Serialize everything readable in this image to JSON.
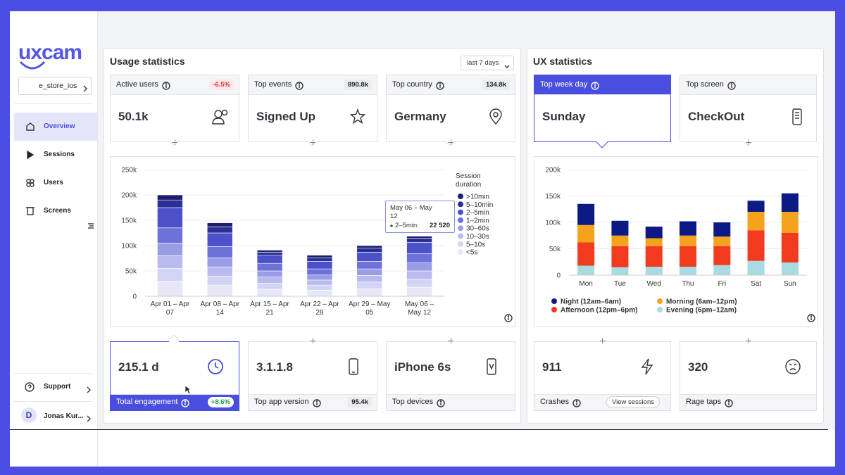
{
  "sidebar": {
    "logo": "uxcam",
    "app": "e_store_ios",
    "nav": [
      "Overview",
      "Sessions",
      "Users",
      "Screens"
    ],
    "support": "Support",
    "user": {
      "initial": "D",
      "name": "Jonas Kur..."
    }
  },
  "usage": {
    "title": "Usage statistics",
    "period": "last 7 days",
    "top_cards": [
      {
        "label": "Active users",
        "badge": "-6.5%",
        "value": "50.1k"
      },
      {
        "label": "Top events",
        "badge": "890.8k",
        "value": "Signed Up"
      },
      {
        "label": "Top country",
        "badge": "134.8k",
        "value": "Germany"
      }
    ],
    "bottom_cards": [
      {
        "label": "Total engagement",
        "badge": "+8.6%",
        "value": "215.1 d"
      },
      {
        "label": "Top app version",
        "badge": "95.4k",
        "value": "3.1.1.8"
      },
      {
        "label": "Top devices",
        "value": "iPhone 6s"
      }
    ]
  },
  "ux": {
    "title": "UX statistics",
    "top_cards": [
      {
        "label": "Top week day",
        "value": "Sunday"
      },
      {
        "label": "Top screen",
        "value": "CheckOut"
      }
    ],
    "bottom_cards": [
      {
        "label": "Crashes",
        "value": "911",
        "button": "View sessions"
      },
      {
        "label": "Rage taps",
        "value": "320"
      }
    ]
  },
  "chart_data": [
    {
      "type": "bar",
      "stacked": true,
      "legend_title": "Session duration",
      "grid": true,
      "categories": [
        "Apr 01 – Apr 07",
        "Apr 08 – Apr 14",
        "Apr 15 – Apr 21",
        "Apr 22 – Apr 28",
        "Apr 29 – May 05",
        "May 06 – May 12"
      ],
      "series": [
        {
          "name": ">10min",
          "color": "#1b1f6e",
          "values": [
            10000,
            8000,
            4000,
            5000,
            5000,
            4000
          ]
        },
        {
          "name": "5–10min",
          "color": "#2a2f95",
          "values": [
            15000,
            12000,
            6000,
            7000,
            8000,
            8000
          ]
        },
        {
          "name": "2–5min",
          "color": "#4c51c9",
          "values": [
            40000,
            27000,
            16000,
            15000,
            18000,
            22520
          ]
        },
        {
          "name": "1–2min",
          "color": "#6d72d9",
          "values": [
            30000,
            22000,
            15000,
            12000,
            15000,
            18000
          ]
        },
        {
          "name": "30–60s",
          "color": "#9a9de6",
          "values": [
            25000,
            18000,
            12000,
            10000,
            13000,
            16000
          ]
        },
        {
          "name": "10–30s",
          "color": "#b9bbee",
          "values": [
            25000,
            18000,
            12000,
            10000,
            13000,
            16000
          ]
        },
        {
          "name": "5–10s",
          "color": "#d3d4f5",
          "values": [
            25000,
            18000,
            12000,
            10000,
            13000,
            16000
          ]
        },
        {
          "name": "<5s",
          "color": "#e6e7f9",
          "values": [
            30000,
            22000,
            14000,
            12000,
            15000,
            18000
          ]
        }
      ],
      "ylim": [
        0,
        250000
      ],
      "yticks": [
        0,
        {
          "value": 50000,
          "label": "50k"
        },
        {
          "value": 100000,
          "label": "100k"
        },
        {
          "value": 150000,
          "label": "150k"
        },
        {
          "value": 200000,
          "label": "200k"
        },
        {
          "value": 250000,
          "label": "250k"
        }
      ],
      "tooltip": {
        "title": "May 06 – May 12",
        "label": "2–5min:",
        "value": "22 520"
      }
    },
    {
      "type": "bar",
      "stacked": true,
      "grid": true,
      "categories": [
        "Mon",
        "Tue",
        "Wed",
        "Thu",
        "Fri",
        "Sat",
        "Sun"
      ],
      "series": [
        {
          "name": "Night (12am–6am)",
          "color": "#0c1a86",
          "values": [
            40000,
            28000,
            22000,
            27000,
            27000,
            21000,
            35000
          ]
        },
        {
          "name": "Morning (6am–12pm)",
          "color": "#f5a31c",
          "values": [
            33000,
            20000,
            15000,
            20000,
            18000,
            35000,
            40000
          ]
        },
        {
          "name": "Afternoon (12pm–6pm)",
          "color": "#f03b1f",
          "values": [
            44000,
            40000,
            39000,
            39000,
            36000,
            58000,
            56000
          ]
        },
        {
          "name": "Evening (6pm–12am)",
          "color": "#a9dbe3",
          "values": [
            18000,
            15000,
            16000,
            16000,
            19000,
            27000,
            24000
          ]
        }
      ],
      "ylim": [
        0,
        200000
      ],
      "yticks": [
        0,
        {
          "value": 50000,
          "label": "50k"
        },
        {
          "value": 100000,
          "label": "100k"
        },
        {
          "value": 150000,
          "label": "150k"
        },
        {
          "value": 200000,
          "label": "200k"
        }
      ]
    }
  ]
}
